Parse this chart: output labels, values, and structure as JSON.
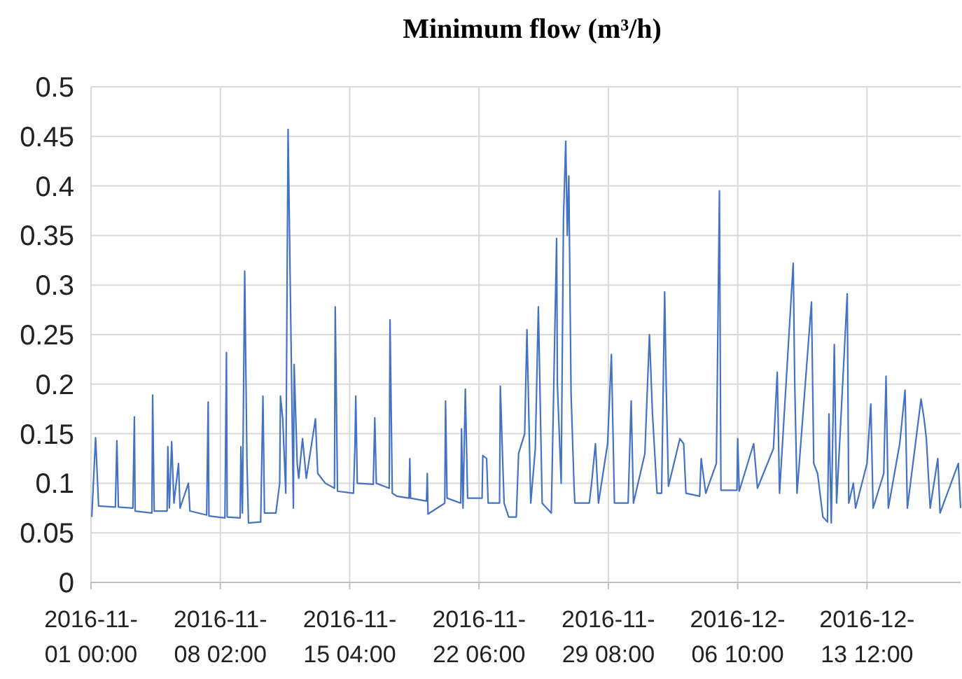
{
  "chart_data": {
    "type": "line",
    "title": "Minimum flow (m³/h)",
    "xlim": [
      "2016-11-01T00:00",
      "2016-12-18T15:00"
    ],
    "xticks": [
      {
        "value": "2016-11-01T00:00",
        "label": "2016-11-\n01 00:00"
      },
      {
        "value": "2016-11-08T02:00",
        "label": "2016-11-\n08 02:00"
      },
      {
        "value": "2016-11-15T04:00",
        "label": "2016-11-\n15 04:00"
      },
      {
        "value": "2016-11-22T06:00",
        "label": "2016-11-\n22 06:00"
      },
      {
        "value": "2016-11-29T08:00",
        "label": "2016-11-\n29 08:00"
      },
      {
        "value": "2016-12-06T10:00",
        "label": "2016-12-\n06 10:00"
      },
      {
        "value": "2016-12-13T12:00",
        "label": "2016-12-\n13 12:00"
      }
    ],
    "ylim": [
      0,
      0.5
    ],
    "yticks": [
      0,
      0.05,
      0.1,
      0.15,
      0.2,
      0.25,
      0.3,
      0.35,
      0.4,
      0.45,
      0.5
    ],
    "grid": true,
    "marker": "none",
    "line_style": "solid",
    "x": [
      "2016-11-01T01:00",
      "2016-11-01T06:00",
      "2016-11-01T10:00",
      "2016-11-02T08:00",
      "2016-11-02T10:00",
      "2016-11-02T12:00",
      "2016-11-03T07:00",
      "2016-11-03T09:00",
      "2016-11-03T10:00",
      "2016-11-04T08:00",
      "2016-11-04T09:00",
      "2016-11-04T11:00",
      "2016-11-05T04:00",
      "2016-11-05T05:00",
      "2016-11-05T07:00",
      "2016-11-05T10:00",
      "2016-11-05T13:00",
      "2016-11-05T19:00",
      "2016-11-05T21:00",
      "2016-11-06T08:00",
      "2016-11-06T10:00",
      "2016-11-07T08:00",
      "2016-11-07T10:00",
      "2016-11-07T11:00",
      "2016-11-08T08:00",
      "2016-11-08T10:00",
      "2016-11-08T11:00",
      "2016-11-09T04:00",
      "2016-11-09T05:00",
      "2016-11-09T07:00",
      "2016-11-09T10:00",
      "2016-11-09T13:00",
      "2016-11-09T15:00",
      "2016-11-10T07:00",
      "2016-11-10T10:00",
      "2016-11-10T12:00",
      "2016-11-11T03:00",
      "2016-11-11T08:00",
      "2016-11-11T09:00",
      "2016-11-11T12:00",
      "2016-11-11T16:00",
      "2016-11-11T19:00",
      "2016-11-11T23:00",
      "2016-11-12T02:00",
      "2016-11-12T03:00",
      "2016-11-12T07:00",
      "2016-11-12T09:00",
      "2016-11-12T14:00",
      "2016-11-12T19:00",
      "2016-11-13T07:00",
      "2016-11-13T10:00",
      "2016-11-13T20:00",
      "2016-11-14T08:00",
      "2016-11-14T09:00",
      "2016-11-14T12:00",
      "2016-11-15T09:00",
      "2016-11-15T11:00",
      "2016-11-15T12:00",
      "2016-11-15T14:00",
      "2016-11-16T11:00",
      "2016-11-16T13:00",
      "2016-11-16T15:00",
      "2016-11-17T08:00",
      "2016-11-17T09:00",
      "2016-11-17T12:00",
      "2016-11-17T18:00",
      "2016-11-18T10:00",
      "2016-11-18T11:00",
      "2016-11-18T12:00",
      "2016-11-19T09:00",
      "2016-11-19T10:00",
      "2016-11-19T11:00",
      "2016-11-20T09:00",
      "2016-11-20T10:00",
      "2016-11-20T12:00",
      "2016-11-21T06:00",
      "2016-11-21T07:00",
      "2016-11-21T09:00",
      "2016-11-21T12:00",
      "2016-11-21T15:00",
      "2016-11-22T10:00",
      "2016-11-22T11:00",
      "2016-11-22T16:00",
      "2016-11-22T18:00",
      "2016-11-23T09:00",
      "2016-11-23T10:00",
      "2016-11-23T13:00",
      "2016-11-23T15:00",
      "2016-11-23T21:00",
      "2016-11-24T07:00",
      "2016-11-24T10:00",
      "2016-11-24T18:00",
      "2016-11-24T21:00",
      "2016-11-25T02:00",
      "2016-11-25T08:00",
      "2016-11-25T12:00",
      "2016-11-25T17:00",
      "2016-11-26T05:00",
      "2016-11-26T12:00",
      "2016-11-26T13:00",
      "2016-11-26T18:00",
      "2016-11-26T21:00",
      "2016-11-27T00:00",
      "2016-11-27T02:00",
      "2016-11-27T04:00",
      "2016-11-27T07:00",
      "2016-11-27T11:00",
      "2016-11-27T12:00",
      "2016-11-28T07:00",
      "2016-11-28T10:00",
      "2016-11-28T15:00",
      "2016-11-28T19:00",
      "2016-11-29T07:00",
      "2016-11-29T12:00",
      "2016-11-29T16:00",
      "2016-11-30T10:00",
      "2016-11-30T14:00",
      "2016-11-30T17:00",
      "2016-12-01T08:00",
      "2016-12-01T14:00",
      "2016-12-01T18:00",
      "2016-12-02T00:00",
      "2016-12-02T06:00",
      "2016-12-02T10:00",
      "2016-12-02T12:00",
      "2016-12-02T15:00",
      "2016-12-03T06:00",
      "2016-12-03T11:00",
      "2016-12-03T14:00",
      "2016-12-04T08:00",
      "2016-12-04T10:00",
      "2016-12-04T16:00",
      "2016-12-05T06:00",
      "2016-12-05T10:00",
      "2016-12-05T12:00",
      "2016-12-06T09:00",
      "2016-12-06T10:00",
      "2016-12-06T12:00",
      "2016-12-07T07:00",
      "2016-12-07T12:00",
      "2016-12-08T09:00",
      "2016-12-08T14:00",
      "2016-12-08T17:00",
      "2016-12-09T11:00",
      "2016-12-09T13:00",
      "2016-12-09T16:00",
      "2016-12-10T11:00",
      "2016-12-10T14:00",
      "2016-12-10T19:00",
      "2016-12-11T02:00",
      "2016-12-11T08:00",
      "2016-12-11T10:00",
      "2016-12-11T13:00",
      "2016-12-11T17:00",
      "2016-12-11T20:00",
      "2016-12-12T10:00",
      "2016-12-12T12:00",
      "2016-12-12T18:00",
      "2016-12-12T21:00",
      "2016-12-13T12:00",
      "2016-12-13T17:00",
      "2016-12-13T20:00",
      "2016-12-14T10:00",
      "2016-12-14T13:00",
      "2016-12-14T16:00",
      "2016-12-15T07:00",
      "2016-12-15T14:00",
      "2016-12-15T17:00",
      "2016-12-16T11:00",
      "2016-12-16T15:00",
      "2016-12-16T18:00",
      "2016-12-16T23:00",
      "2016-12-17T09:00",
      "2016-12-17T12:00",
      "2016-12-18T12:00",
      "2016-12-18T15:00"
    ],
    "series": [
      {
        "color": "#4472c4",
        "values": [
          0.066,
          0.146,
          0.077,
          0.076,
          0.143,
          0.076,
          0.075,
          0.167,
          0.072,
          0.07,
          0.189,
          0.072,
          0.072,
          0.137,
          0.075,
          0.142,
          0.08,
          0.12,
          0.075,
          0.1,
          0.072,
          0.068,
          0.182,
          0.067,
          0.065,
          0.232,
          0.066,
          0.065,
          0.137,
          0.07,
          0.314,
          0.12,
          0.06,
          0.061,
          0.188,
          0.07,
          0.07,
          0.1,
          0.188,
          0.165,
          0.09,
          0.457,
          0.24,
          0.075,
          0.22,
          0.12,
          0.105,
          0.145,
          0.105,
          0.165,
          0.11,
          0.1,
          0.095,
          0.278,
          0.092,
          0.09,
          0.14,
          0.188,
          0.1,
          0.099,
          0.166,
          0.1,
          0.095,
          0.265,
          0.09,
          0.087,
          0.085,
          0.125,
          0.085,
          0.082,
          0.11,
          0.069,
          0.08,
          0.183,
          0.085,
          0.08,
          0.155,
          0.075,
          0.195,
          0.085,
          0.085,
          0.128,
          0.125,
          0.08,
          0.08,
          0.198,
          0.125,
          0.08,
          0.066,
          0.066,
          0.13,
          0.15,
          0.255,
          0.08,
          0.135,
          0.278,
          0.08,
          0.07,
          0.347,
          0.2,
          0.1,
          0.367,
          0.445,
          0.35,
          0.41,
          0.19,
          0.095,
          0.08,
          0.08,
          0.1,
          0.14,
          0.08,
          0.14,
          0.23,
          0.08,
          0.08,
          0.183,
          0.08,
          0.13,
          0.25,
          0.17,
          0.09,
          0.09,
          0.293,
          0.2,
          0.097,
          0.145,
          0.14,
          0.09,
          0.087,
          0.125,
          0.09,
          0.12,
          0.395,
          0.093,
          0.093,
          0.145,
          0.092,
          0.14,
          0.095,
          0.135,
          0.212,
          0.09,
          0.322,
          0.2,
          0.09,
          0.283,
          0.12,
          0.11,
          0.066,
          0.061,
          0.17,
          0.06,
          0.24,
          0.08,
          0.291,
          0.08,
          0.1,
          0.075,
          0.12,
          0.18,
          0.075,
          0.11,
          0.208,
          0.075,
          0.14,
          0.194,
          0.075,
          0.185,
          0.165,
          0.145,
          0.075,
          0.125,
          0.07,
          0.12,
          0.075
        ]
      }
    ]
  }
}
